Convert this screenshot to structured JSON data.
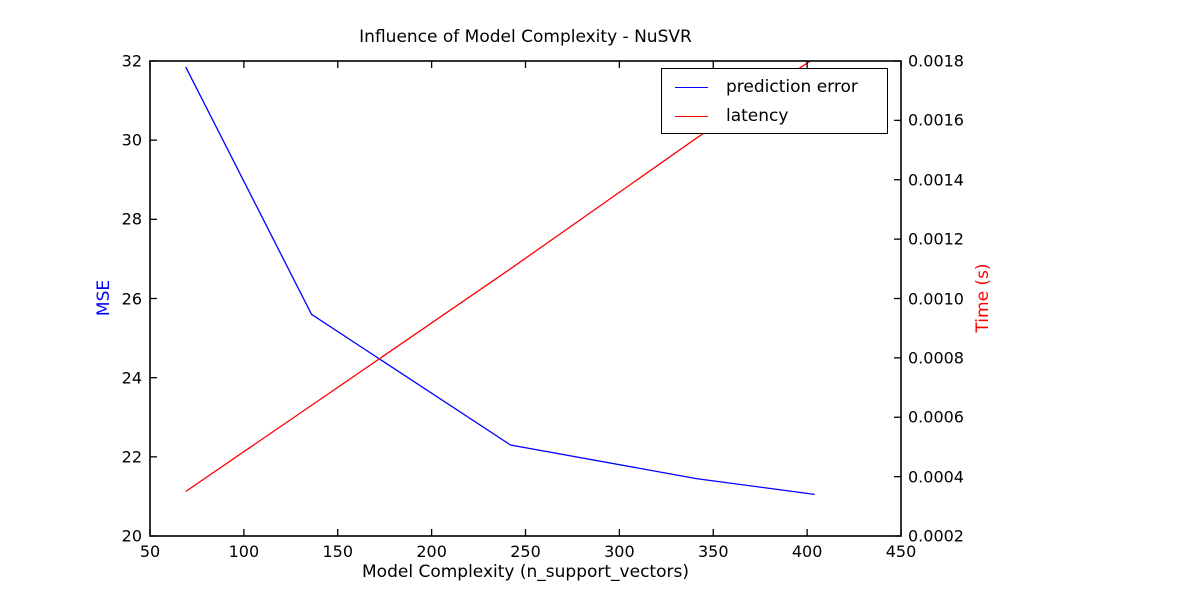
{
  "figure": {
    "background": "#ffffff",
    "frame_color": "#000000",
    "left_axis_color": "#0000ff",
    "right_axis_color": "#ff0000"
  },
  "chart_data": {
    "type": "line",
    "title": "Influence of Model Complexity - NuSVR",
    "xlabel": "Model Complexity (n_support_vectors)",
    "ylabel_left": "MSE",
    "ylabel_right": "Time (s)",
    "xlim": [
      50,
      450
    ],
    "ylim_left": [
      20,
      32
    ],
    "ylim_right": [
      0.0002,
      0.0018
    ],
    "xticks": [
      "50",
      "100",
      "150",
      "200",
      "250",
      "300",
      "350",
      "400",
      "450"
    ],
    "yticks_left": [
      "20",
      "22",
      "24",
      "26",
      "28",
      "30",
      "32"
    ],
    "yticks_right": [
      "0.0002",
      "0.0004",
      "0.0006",
      "0.0008",
      "0.0010",
      "0.0012",
      "0.0014",
      "0.0016",
      "0.0018"
    ],
    "grid": false,
    "legend": {
      "position": "upper right",
      "entries": [
        {
          "label": "prediction error",
          "color": "#0000ff"
        },
        {
          "label": "latency",
          "color": "#ff0000"
        }
      ]
    },
    "series": [
      {
        "name": "prediction error",
        "axis": "left",
        "color": "#0000ff",
        "x": [
          69,
          136,
          242,
          341,
          404
        ],
        "y": [
          31.85,
          25.6,
          22.3,
          21.45,
          21.05
        ]
      },
      {
        "name": "latency",
        "axis": "right",
        "color": "#ff0000",
        "x": [
          69,
          136,
          242,
          341,
          404
        ],
        "y": [
          0.00035,
          0.00064,
          0.0011,
          0.00154,
          0.00181
        ]
      }
    ]
  }
}
